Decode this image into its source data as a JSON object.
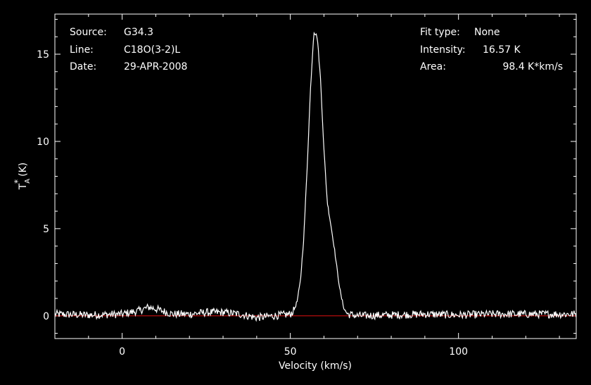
{
  "chart_data": {
    "type": "line",
    "xlabel": "Velocity (km/s)",
    "ylabel_main": "T",
    "ylabel_sub": "A",
    "ylabel_sup": "*",
    "ylabel_unit": "(K)",
    "xlim": [
      -20,
      135
    ],
    "ylim": [
      -1.3,
      17.3
    ],
    "x_ticks": [
      0,
      50,
      100
    ],
    "y_ticks": [
      0,
      5,
      10,
      15
    ],
    "baseline": 0,
    "colors": {
      "background": "#000000",
      "line": "#ffffff",
      "baseline": "#e01010",
      "text": "#ffffff"
    },
    "info_left": [
      {
        "key": "Source:",
        "value": "G34.3"
      },
      {
        "key": "Line:",
        "value": "C18O(3-2)L"
      },
      {
        "key": "Date:",
        "value": "29-APR-2008"
      }
    ],
    "info_right": [
      {
        "key": "Fit type:",
        "value": "None"
      },
      {
        "key": "Intensity:",
        "value": "16.57 K"
      },
      {
        "key": "Area:",
        "value": "98.4 K*km/s"
      }
    ],
    "series": [
      {
        "x": [
          -20,
          -10,
          0,
          5,
          8,
          10,
          15,
          20,
          25,
          30,
          35,
          40,
          45,
          50,
          51,
          52,
          53,
          54,
          55,
          56,
          57,
          58,
          59,
          60,
          61,
          62,
          63,
          64,
          65,
          66,
          67,
          70,
          80,
          90,
          100,
          110,
          120,
          130,
          135
        ],
        "y": [
          0.1,
          0.05,
          0.1,
          0.3,
          0.5,
          0.4,
          0.1,
          0.1,
          0.2,
          0.2,
          0.1,
          -0.1,
          0.0,
          0.1,
          0.3,
          0.8,
          2.0,
          4.5,
          8.5,
          13.0,
          16.3,
          16.0,
          13.5,
          9.5,
          6.5,
          5.3,
          4.0,
          2.5,
          1.2,
          0.4,
          0.1,
          0.0,
          0.05,
          0.1,
          0.05,
          0.1,
          0.1,
          0.1,
          0.1
        ]
      }
    ]
  }
}
